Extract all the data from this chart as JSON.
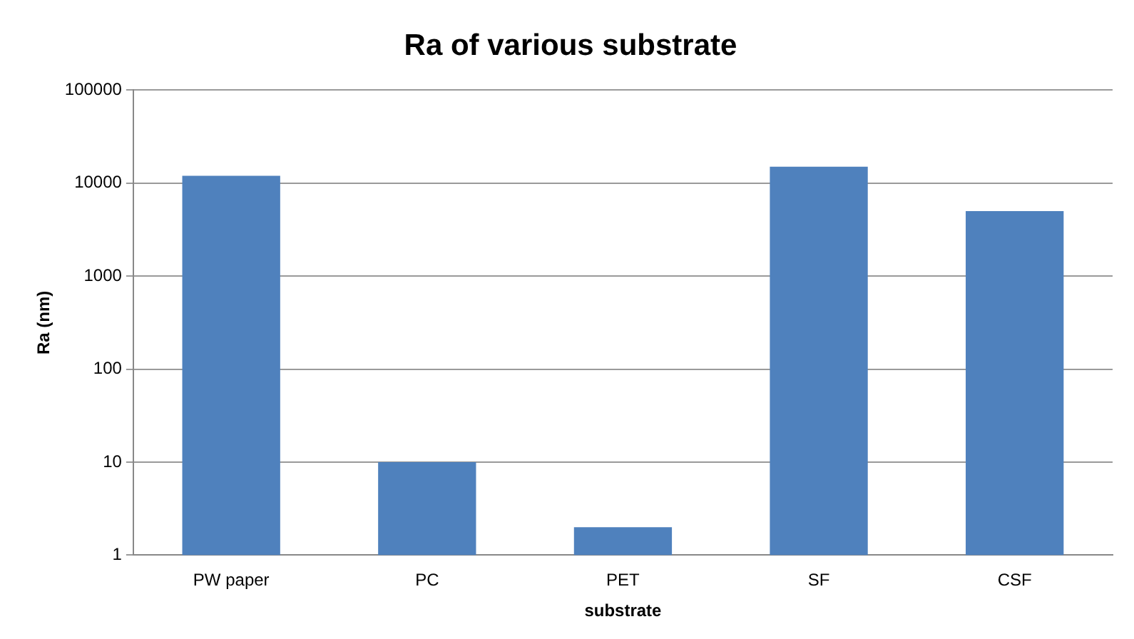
{
  "chart_data": {
    "type": "bar",
    "title": "Ra of various substrate",
    "xlabel": "substrate",
    "ylabel": "Ra (nm)",
    "categories": [
      "PW paper",
      "PC",
      "PET",
      "SF",
      "CSF"
    ],
    "values": [
      12000,
      10,
      2,
      15000,
      5000
    ],
    "color": "#4f81bd",
    "log": "y",
    "ylim": [
      1,
      100000
    ],
    "yticks": [
      1,
      10,
      100,
      1000,
      10000,
      100000
    ],
    "grid": "y",
    "legend": false
  }
}
